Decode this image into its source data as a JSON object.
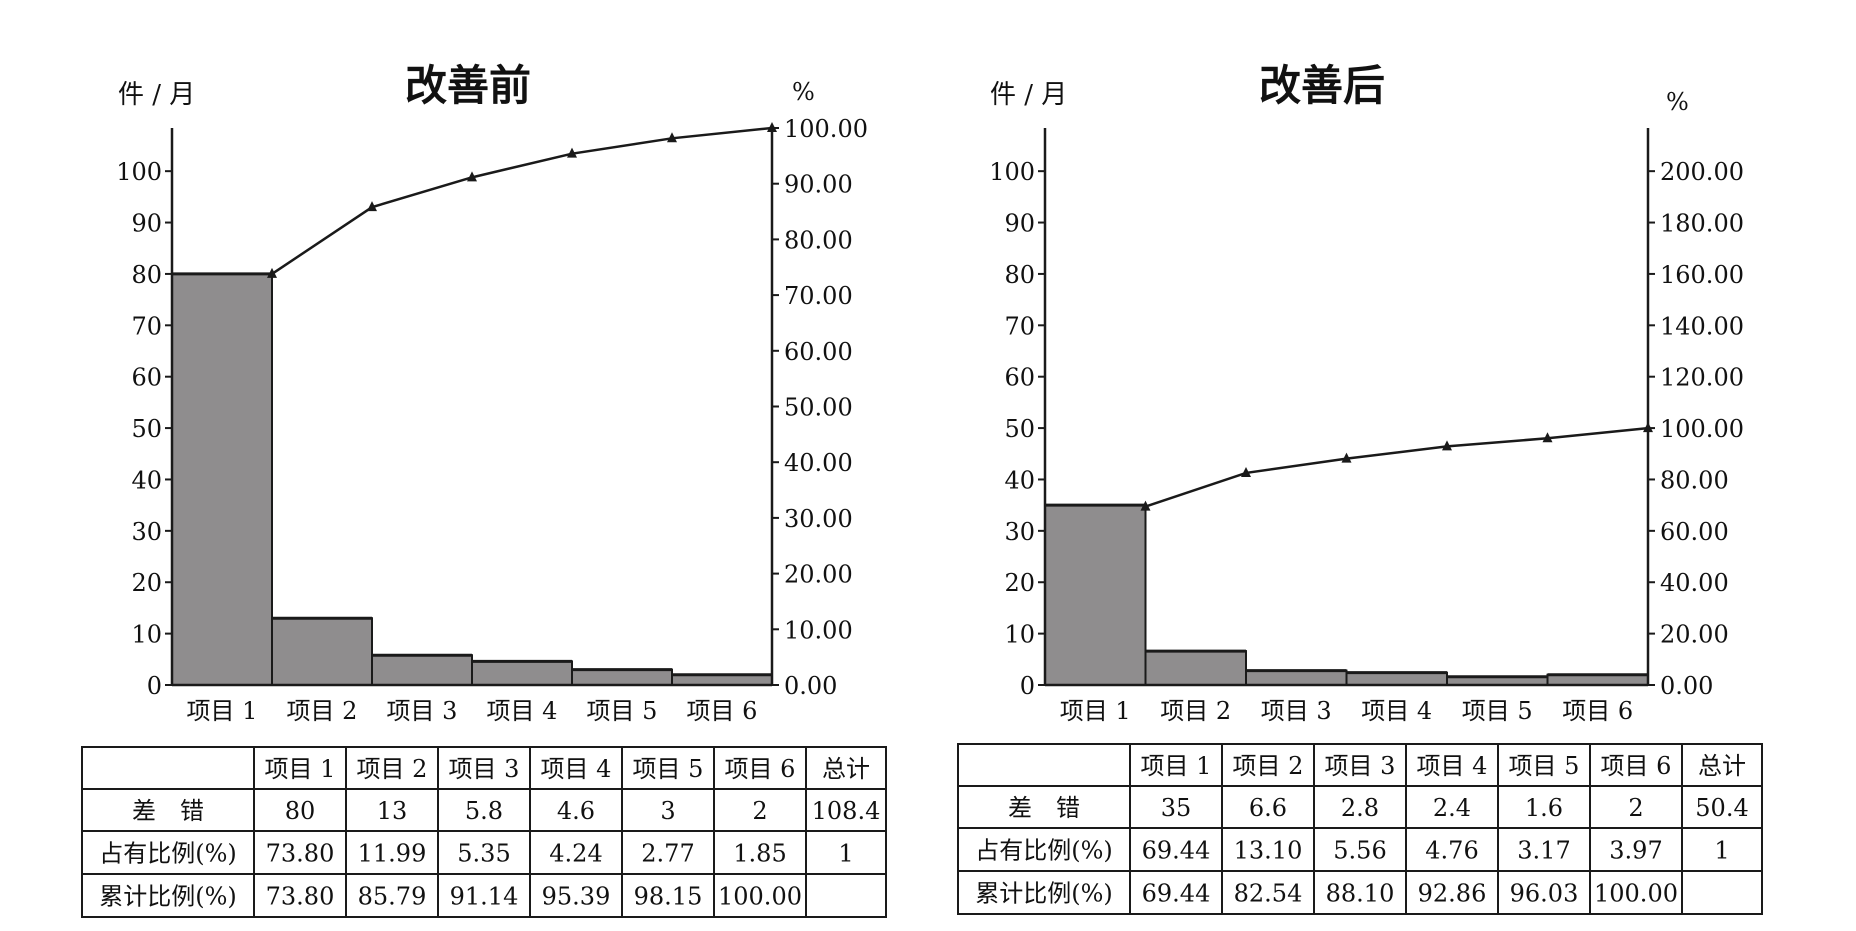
{
  "charts": [
    {
      "chart_data": {
        "type": "bar",
        "title": "改善前",
        "ylabel_left": "件 / 月",
        "ylabel_right": "%",
        "categories": [
          "项目 1",
          "项目 2",
          "项目 3",
          "项目 4",
          "项目 5",
          "项目 6"
        ],
        "series": [
          {
            "values": [
              80,
              13,
              5.8,
              4.6,
              3,
              2
            ]
          },
          {
            "values": [
              73.8,
              85.79,
              91.14,
              95.39,
              98.15,
              100.0
            ]
          }
        ],
        "left_ticks": [
          "0",
          "10",
          "20",
          "30",
          "40",
          "50",
          "60",
          "70",
          "80",
          "90",
          "100"
        ],
        "left_tick_values": [
          0,
          10,
          20,
          30,
          40,
          50,
          60,
          70,
          80,
          90,
          100
        ],
        "ylim_left": [
          0,
          108.4
        ],
        "right_ticks": [
          "0.00",
          "10.00",
          "20.00",
          "30.00",
          "40.00",
          "50.00",
          "60.00",
          "70.00",
          "80.00",
          "90.00",
          "100.00"
        ],
        "right_tick_values": [
          0,
          10,
          20,
          30,
          40,
          50,
          60,
          70,
          80,
          90,
          100
        ],
        "ylim_right": [
          0,
          100
        ]
      },
      "table": {
        "header": [
          "",
          "项目 1",
          "项目 2",
          "项目 3",
          "项目 4",
          "项目 5",
          "项目 6",
          "总计"
        ],
        "rows": [
          [
            "差　错",
            "80",
            "13",
            "5.8",
            "4.6",
            "3",
            "2",
            "108.4"
          ],
          [
            "占有比例(%)",
            "73.80",
            "11.99",
            "5.35",
            "4.24",
            "2.77",
            "1.85",
            "1"
          ],
          [
            "累计比例(%)",
            "73.80",
            "85.79",
            "91.14",
            "95.39",
            "98.15",
            "100.00",
            ""
          ]
        ]
      }
    },
    {
      "chart_data": {
        "type": "bar",
        "title": "改善后",
        "ylabel_left": "件 / 月",
        "ylabel_right": "%",
        "categories": [
          "项目 1",
          "项目 2",
          "项目 3",
          "项目 4",
          "项目 5",
          "项目 6"
        ],
        "series": [
          {
            "values": [
              35,
              6.6,
              2.8,
              2.4,
              1.6,
              2
            ]
          },
          {
            "values": [
              69.44,
              82.54,
              88.1,
              92.86,
              96.03,
              100.0
            ]
          }
        ],
        "left_ticks": [
          "0",
          "10",
          "20",
          "30",
          "40",
          "50",
          "60",
          "70",
          "80",
          "90",
          "100"
        ],
        "left_tick_values": [
          0,
          10,
          20,
          30,
          40,
          50,
          60,
          70,
          80,
          90,
          100
        ],
        "ylim_left": [
          0,
          108.4
        ],
        "right_ticks": [
          "0.00",
          "20.00",
          "40.00",
          "60.00",
          "80.00",
          "100.00",
          "120.00",
          "140.00",
          "160.00",
          "180.00",
          "200.00"
        ],
        "right_tick_values": [
          0,
          20,
          40,
          60,
          80,
          100,
          120,
          140,
          160,
          180,
          200
        ],
        "ylim_right": [
          0,
          216.8
        ]
      },
      "table": {
        "header": [
          "",
          "项目 1",
          "项目 2",
          "项目 3",
          "项目 4",
          "项目 5",
          "项目 6",
          "总计"
        ],
        "rows": [
          [
            "差　错",
            "35",
            "6.6",
            "2.8",
            "2.4",
            "1.6",
            "2",
            "50.4"
          ],
          [
            "占有比例(%)",
            "69.44",
            "13.10",
            "5.56",
            "4.76",
            "3.17",
            "3.97",
            "1"
          ],
          [
            "累计比例(%)",
            "69.44",
            "82.54",
            "88.10",
            "92.86",
            "96.03",
            "100.00",
            ""
          ]
        ]
      }
    }
  ],
  "colors": {
    "bar_fill": "#8f8d8e",
    "stroke": "#1a1a1a"
  }
}
